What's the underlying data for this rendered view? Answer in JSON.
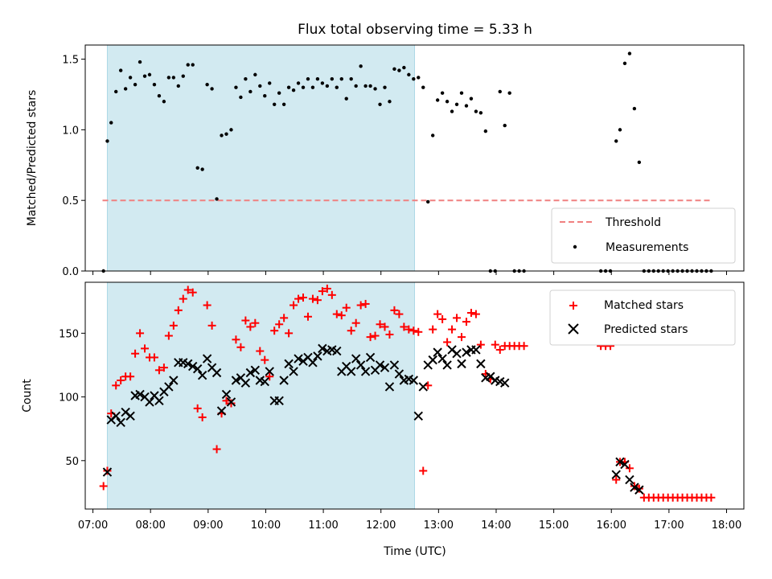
{
  "title": "Flux total observing time = 5.33 h",
  "xlabel": "Time (UTC)",
  "x_ticks": [
    "07:00",
    "08:00",
    "09:00",
    "10:00",
    "11:00",
    "12:00",
    "13:00",
    "14:00",
    "15:00",
    "16:00",
    "17:00",
    "18:00"
  ],
  "colors": {
    "shade": "#add8e6",
    "threshold": "#f08080",
    "matched": "#ff0000",
    "predicted": "#000000",
    "measure": "#000000"
  },
  "chart_data": [
    {
      "type": "scatter",
      "ylabel": "Matched/Predicted stars",
      "xlim": [
        "06:52",
        "18:18"
      ],
      "ylim": [
        0,
        1.6
      ],
      "y_ticks": [
        "0.0",
        "0.5",
        "1.0",
        "1.5"
      ],
      "shaded_interval": [
        "07:15",
        "12:35"
      ],
      "legend": {
        "placement": "lower-right",
        "entries": [
          "Threshold",
          "Measurements"
        ]
      },
      "threshold": {
        "name": "Threshold",
        "value": 0.5,
        "x_range": [
          "07:10",
          "17:45"
        ]
      },
      "series": [
        {
          "name": "Measurements",
          "x": [
            "07:11",
            "07:15",
            "07:19",
            "07:24",
            "07:29",
            "07:34",
            "07:39",
            "07:44",
            "07:49",
            "07:54",
            "07:59",
            "08:04",
            "08:09",
            "08:14",
            "08:19",
            "08:24",
            "08:29",
            "08:34",
            "08:39",
            "08:44",
            "08:49",
            "08:54",
            "08:59",
            "09:04",
            "09:09",
            "09:14",
            "09:19",
            "09:24",
            "09:29",
            "09:34",
            "09:39",
            "09:44",
            "09:49",
            "09:54",
            "09:59",
            "10:04",
            "10:09",
            "10:14",
            "10:19",
            "10:24",
            "10:29",
            "10:34",
            "10:39",
            "10:44",
            "10:49",
            "10:54",
            "10:59",
            "11:04",
            "11:09",
            "11:14",
            "11:19",
            "11:24",
            "11:29",
            "11:34",
            "11:39",
            "11:44",
            "11:49",
            "11:54",
            "11:59",
            "12:04",
            "12:09",
            "12:14",
            "12:19",
            "12:24",
            "12:29",
            "12:34",
            "12:39",
            "12:44",
            "12:49",
            "12:54",
            "12:59",
            "13:04",
            "13:09",
            "13:14",
            "13:19",
            "13:24",
            "13:29",
            "13:34",
            "13:39",
            "13:44",
            "13:49",
            "13:54",
            "13:59",
            "14:04",
            "14:09",
            "14:14",
            "14:19",
            "14:24",
            "14:29",
            "15:49",
            "15:54",
            "15:59",
            "16:05",
            "16:09",
            "16:14",
            "16:19",
            "16:24",
            "16:29",
            "16:34",
            "16:39",
            "16:44",
            "16:49",
            "16:54",
            "16:59",
            "17:04",
            "17:09",
            "17:14",
            "17:19",
            "17:24",
            "17:29",
            "17:34",
            "17:39",
            "17:44"
          ],
          "y": [
            0.0,
            0.92,
            1.05,
            1.27,
            1.42,
            1.29,
            1.37,
            1.32,
            1.48,
            1.38,
            1.39,
            1.32,
            1.24,
            1.2,
            1.37,
            1.37,
            1.31,
            1.38,
            1.46,
            1.46,
            0.73,
            0.72,
            1.32,
            1.29,
            0.51,
            0.96,
            0.97,
            1.0,
            1.3,
            1.23,
            1.36,
            1.27,
            1.39,
            1.31,
            1.24,
            1.33,
            1.18,
            1.26,
            1.18,
            1.3,
            1.28,
            1.33,
            1.3,
            1.36,
            1.3,
            1.36,
            1.33,
            1.31,
            1.36,
            1.3,
            1.36,
            1.22,
            1.36,
            1.31,
            1.45,
            1.31,
            1.31,
            1.29,
            1.18,
            1.3,
            1.2,
            1.43,
            1.42,
            1.44,
            1.39,
            1.36,
            1.37,
            1.3,
            0.49,
            0.96,
            1.21,
            1.26,
            1.2,
            1.13,
            1.18,
            1.26,
            1.17,
            1.22,
            1.13,
            1.12,
            0.99,
            0.0,
            0.0,
            1.27,
            1.03,
            1.26,
            0.0,
            0.0,
            0.0,
            0.0,
            0.0,
            0.0,
            0.92,
            1.0,
            1.47,
            1.54,
            1.15,
            0.77,
            0.0,
            0.0,
            0.0,
            0.0,
            0.0,
            0.0,
            0.0,
            0.0,
            0.0,
            0.0,
            0.0,
            0.0,
            0.0,
            0.0,
            0.0
          ]
        }
      ]
    },
    {
      "type": "scatter",
      "ylabel": "Count",
      "xlabel": "Time (UTC)",
      "xlim": [
        "06:52",
        "18:18"
      ],
      "ylim": [
        12,
        190
      ],
      "y_ticks": [
        "50",
        "100",
        "150"
      ],
      "shaded_interval": [
        "07:15",
        "12:35"
      ],
      "legend": {
        "placement": "upper-right",
        "entries": [
          "Matched stars",
          "Predicted stars"
        ]
      },
      "series": [
        {
          "name": "Matched stars",
          "x": [
            "07:11",
            "07:15",
            "07:19",
            "07:24",
            "07:29",
            "07:34",
            "07:39",
            "07:44",
            "07:49",
            "07:54",
            "07:59",
            "08:04",
            "08:09",
            "08:14",
            "08:19",
            "08:24",
            "08:29",
            "08:34",
            "08:39",
            "08:44",
            "08:49",
            "08:54",
            "08:59",
            "09:04",
            "09:09",
            "09:14",
            "09:19",
            "09:24",
            "09:29",
            "09:34",
            "09:39",
            "09:44",
            "09:49",
            "09:54",
            "09:59",
            "10:04",
            "10:09",
            "10:14",
            "10:19",
            "10:24",
            "10:29",
            "10:34",
            "10:39",
            "10:44",
            "10:49",
            "10:54",
            "10:59",
            "11:04",
            "11:09",
            "11:14",
            "11:19",
            "11:24",
            "11:29",
            "11:34",
            "11:39",
            "11:44",
            "11:49",
            "11:54",
            "11:59",
            "12:04",
            "12:09",
            "12:14",
            "12:19",
            "12:24",
            "12:29",
            "12:34",
            "12:39",
            "12:44",
            "12:49",
            "12:54",
            "12:59",
            "13:04",
            "13:09",
            "13:14",
            "13:19",
            "13:24",
            "13:29",
            "13:34",
            "13:39",
            "13:44",
            "13:49",
            "13:54",
            "13:59",
            "14:04",
            "14:09",
            "14:14",
            "14:19",
            "14:24",
            "14:29",
            "15:49",
            "15:54",
            "15:59",
            "16:05",
            "16:09",
            "16:14",
            "16:19",
            "16:24",
            "16:29",
            "16:34",
            "16:39",
            "16:44",
            "16:49",
            "16:54",
            "16:59",
            "17:04",
            "17:09",
            "17:14",
            "17:19",
            "17:24",
            "17:29",
            "17:34",
            "17:39",
            "17:44"
          ],
          "y": [
            30,
            42,
            87,
            109,
            113,
            116,
            116,
            134,
            150,
            138,
            131,
            131,
            121,
            123,
            148,
            156,
            168,
            177,
            184,
            182,
            91,
            84,
            172,
            156,
            59,
            87,
            97,
            95,
            145,
            139,
            160,
            155,
            158,
            136,
            129,
            116,
            152,
            157,
            162,
            150,
            172,
            177,
            178,
            163,
            177,
            176,
            183,
            185,
            180,
            165,
            164,
            170,
            152,
            158,
            172,
            173,
            147,
            148,
            157,
            155,
            149,
            168,
            165,
            155,
            153,
            152,
            151,
            42,
            109,
            153,
            165,
            161,
            143,
            153,
            162,
            147,
            159,
            166,
            165,
            141,
            118,
            114,
            141,
            137,
            140,
            140,
            140,
            140,
            140,
            140,
            140,
            140,
            35,
            49,
            49,
            44,
            30,
            28,
            21,
            21,
            21,
            21,
            21,
            21,
            21,
            21,
            21,
            21,
            21,
            21,
            21,
            21,
            21
          ]
        },
        {
          "name": "Predicted stars",
          "x": [
            "07:15",
            "07:19",
            "07:24",
            "07:29",
            "07:34",
            "07:39",
            "07:44",
            "07:49",
            "07:54",
            "07:59",
            "08:04",
            "08:09",
            "08:14",
            "08:19",
            "08:24",
            "08:29",
            "08:34",
            "08:39",
            "08:44",
            "08:49",
            "08:54",
            "08:59",
            "09:04",
            "09:09",
            "09:14",
            "09:19",
            "09:24",
            "09:29",
            "09:34",
            "09:39",
            "09:44",
            "09:49",
            "09:54",
            "09:59",
            "10:04",
            "10:09",
            "10:14",
            "10:19",
            "10:24",
            "10:29",
            "10:34",
            "10:39",
            "10:44",
            "10:49",
            "10:54",
            "10:59",
            "11:04",
            "11:09",
            "11:14",
            "11:19",
            "11:24",
            "11:29",
            "11:34",
            "11:39",
            "11:44",
            "11:49",
            "11:54",
            "11:59",
            "12:04",
            "12:09",
            "12:14",
            "12:19",
            "12:24",
            "12:29",
            "12:34",
            "12:39",
            "12:44",
            "12:49",
            "12:54",
            "12:59",
            "13:04",
            "13:09",
            "13:14",
            "13:19",
            "13:24",
            "13:29",
            "13:34",
            "13:39",
            "13:44",
            "13:49",
            "13:54",
            "13:59",
            "14:04",
            "14:09",
            "16:05",
            "16:09",
            "16:14",
            "16:19",
            "16:24",
            "16:29"
          ],
          "y": [
            41,
            82,
            85,
            80,
            88,
            85,
            101,
            102,
            100,
            96,
            101,
            97,
            104,
            108,
            113,
            127,
            127,
            126,
            124,
            122,
            117,
            130,
            123,
            119,
            89,
            102,
            96,
            113,
            115,
            111,
            119,
            121,
            113,
            112,
            120,
            97,
            97,
            113,
            126,
            120,
            130,
            128,
            131,
            127,
            132,
            138,
            136,
            137,
            136,
            120,
            124,
            120,
            130,
            125,
            120,
            131,
            121,
            125,
            123,
            108,
            125,
            118,
            113,
            114,
            113,
            85,
            108,
            125,
            129,
            135,
            130,
            125,
            137,
            134,
            126,
            135,
            137,
            137,
            126,
            115,
            116,
            113,
            112,
            111,
            39,
            49,
            47,
            35,
            29,
            27
          ]
        }
      ]
    }
  ]
}
